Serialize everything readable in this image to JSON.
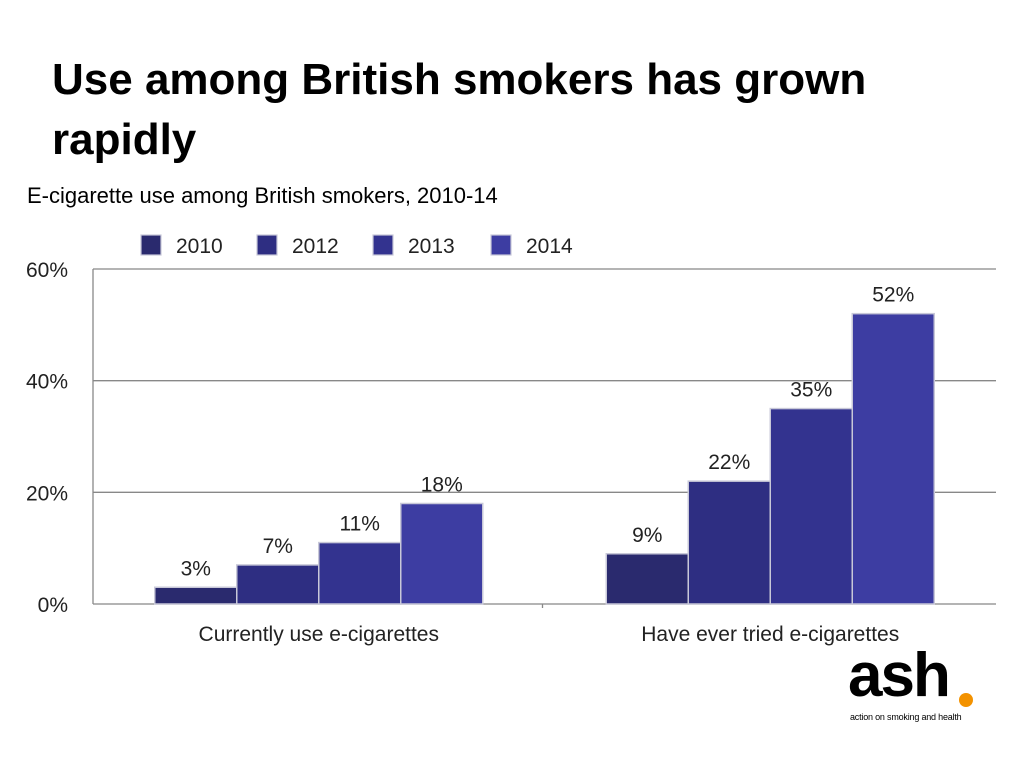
{
  "slide": {
    "title": "Use among British smokers has grown rapidly"
  },
  "chart_data": {
    "type": "bar",
    "title": "E-cigarette use among British smokers, 2010-14",
    "xlabel": "",
    "ylabel": "",
    "categories": [
      "Currently use e-cigarettes",
      "Have ever tried e-cigarettes"
    ],
    "series": [
      {
        "name": "2010",
        "values": [
          3,
          9
        ],
        "color": "#2a2a6e",
        "labels": [
          "3%",
          "9%"
        ]
      },
      {
        "name": "2012",
        "values": [
          7,
          22
        ],
        "color": "#2e2e82",
        "labels": [
          "7%",
          "22%"
        ]
      },
      {
        "name": "2013",
        "values": [
          11,
          35
        ],
        "color": "#33338f",
        "labels": [
          "11%",
          "35%"
        ]
      },
      {
        "name": "2014",
        "values": [
          18,
          52
        ],
        "color": "#3d3da2",
        "labels": [
          "18%",
          "52%"
        ]
      }
    ],
    "ylim": [
      0,
      60
    ],
    "yticks": [
      0,
      20,
      40,
      60
    ],
    "ytick_labels": [
      "0%",
      "20%",
      "40%",
      "60%"
    ],
    "grid": true,
    "legend_position": "top"
  },
  "logo": {
    "word": "ash",
    "tagline": "action on smoking and health",
    "dot_color": "#f39200"
  }
}
